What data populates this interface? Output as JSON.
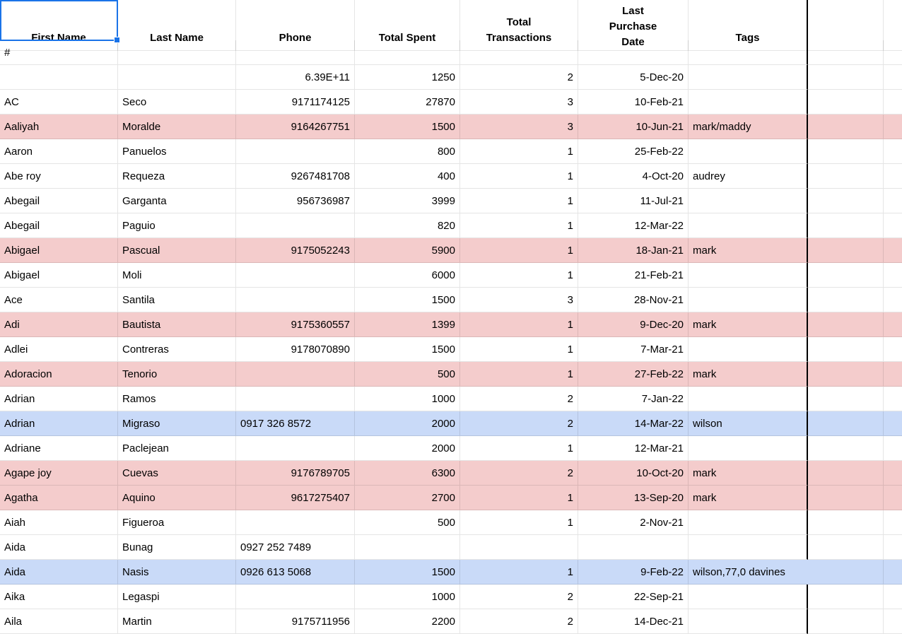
{
  "app": "spreadsheet-grid",
  "colors": {
    "highlight_pink": "#f4cccc",
    "highlight_blue": "#c9daf8",
    "selection_blue": "#1a73e8",
    "custom_border_black": "#000000",
    "gridline": "#e5e5e5",
    "text": "#000000",
    "background": "#ffffff"
  },
  "selection": {
    "selected_cell_label": "First Name"
  },
  "columns": [
    {
      "id": "first",
      "label": "First Name",
      "lines": [
        "First Name"
      ],
      "align": "left"
    },
    {
      "id": "last",
      "label": "Last Name",
      "lines": [
        "Last Name"
      ],
      "align": "left"
    },
    {
      "id": "phone",
      "label": "Phone",
      "lines": [
        "Phone"
      ],
      "align": "right"
    },
    {
      "id": "spent",
      "label": "Total Spent",
      "lines": [
        "Total Spent"
      ],
      "align": "right"
    },
    {
      "id": "tx",
      "label": "Total Transactions",
      "lines": [
        "Total",
        "Transactions"
      ],
      "align": "right"
    },
    {
      "id": "date",
      "label": "Last Purchase Date",
      "lines": [
        "Last",
        "Purchase",
        "Date"
      ],
      "align": "right",
      "clip_from_top": true
    },
    {
      "id": "tags",
      "label": "Tags",
      "lines": [
        "Tags"
      ],
      "align": "left",
      "black_right_border": true
    },
    {
      "id": "extra1",
      "label": "",
      "lines": [],
      "align": "left"
    },
    {
      "id": "extra2",
      "label": "",
      "lines": [],
      "align": "left"
    }
  ],
  "rows": [
    {
      "first": "#",
      "last": "",
      "phone": "",
      "spent": "",
      "tx": "",
      "date": "",
      "tags": "",
      "hl": ""
    },
    {
      "first": "",
      "last": "",
      "phone": "6.39E+11",
      "spent": "1250",
      "tx": "2",
      "date": "5-Dec-20",
      "tags": "",
      "hl": ""
    },
    {
      "first": "AC",
      "last": "Seco",
      "phone": "9171174125",
      "spent": "27870",
      "tx": "3",
      "date": "10-Feb-21",
      "tags": "",
      "hl": ""
    },
    {
      "first": "Aaliyah",
      "last": "Moralde",
      "phone": "9164267751",
      "spent": "1500",
      "tx": "3",
      "date": "10-Jun-21",
      "tags": "mark/maddy",
      "hl": "pink"
    },
    {
      "first": "Aaron",
      "last": "Panuelos",
      "phone": "",
      "spent": "800",
      "tx": "1",
      "date": "25-Feb-22",
      "tags": "",
      "hl": ""
    },
    {
      "first": "Abe roy",
      "last": "Requeza",
      "phone": "9267481708",
      "spent": "400",
      "tx": "1",
      "date": "4-Oct-20",
      "tags": "audrey",
      "hl": ""
    },
    {
      "first": "Abegail",
      "last": "Garganta",
      "phone": "956736987",
      "spent": "3999",
      "tx": "1",
      "date": "11-Jul-21",
      "tags": "",
      "hl": ""
    },
    {
      "first": "Abegail",
      "last": "Paguio",
      "phone": "",
      "spent": "820",
      "tx": "1",
      "date": "12-Mar-22",
      "tags": "",
      "hl": ""
    },
    {
      "first": "Abigael",
      "last": "Pascual",
      "phone": "9175052243",
      "spent": "5900",
      "tx": "1",
      "date": "18-Jan-21",
      "tags": "mark",
      "hl": "pink"
    },
    {
      "first": "Abigael",
      "last": "Moli",
      "phone": "",
      "spent": "6000",
      "tx": "1",
      "date": "21-Feb-21",
      "tags": "",
      "hl": ""
    },
    {
      "first": "Ace",
      "last": "Santila",
      "phone": "",
      "spent": "1500",
      "tx": "3",
      "date": "28-Nov-21",
      "tags": "",
      "hl": ""
    },
    {
      "first": "Adi",
      "last": "Bautista",
      "phone": "9175360557",
      "spent": "1399",
      "tx": "1",
      "date": "9-Dec-20",
      "tags": "mark",
      "hl": "pink"
    },
    {
      "first": "Adlei",
      "last": "Contreras",
      "phone": "9178070890",
      "spent": "1500",
      "tx": "1",
      "date": "7-Mar-21",
      "tags": "",
      "hl": ""
    },
    {
      "first": "Adoracion",
      "last": "Tenorio",
      "phone": "",
      "spent": "500",
      "tx": "1",
      "date": "27-Feb-22",
      "tags": "mark",
      "hl": "pink"
    },
    {
      "first": "Adrian",
      "last": "Ramos",
      "phone": "",
      "spent": "1000",
      "tx": "2",
      "date": "7-Jan-22",
      "tags": "",
      "hl": ""
    },
    {
      "first": "Adrian",
      "last": "Migraso",
      "phone": "0917 326 8572",
      "spent": "2000",
      "tx": "2",
      "date": "14-Mar-22",
      "tags": "wilson",
      "hl": "blue"
    },
    {
      "first": "Adriane",
      "last": "Paclejean",
      "phone": "",
      "spent": "2000",
      "tx": "1",
      "date": "12-Mar-21",
      "tags": "",
      "hl": ""
    },
    {
      "first": "Agape joy",
      "last": "Cuevas",
      "phone": "9176789705",
      "spent": "6300",
      "tx": "2",
      "date": "10-Oct-20",
      "tags": "mark",
      "hl": "pink"
    },
    {
      "first": "Agatha",
      "last": "Aquino",
      "phone": "9617275407",
      "spent": "2700",
      "tx": "1",
      "date": "13-Sep-20",
      "tags": "mark",
      "hl": "pink"
    },
    {
      "first": "Aiah",
      "last": "Figueroa",
      "phone": "",
      "spent": "500",
      "tx": "1",
      "date": "2-Nov-21",
      "tags": "",
      "hl": ""
    },
    {
      "first": "Aida",
      "last": "Bunag",
      "phone": "0927 252 7489",
      "spent": "",
      "tx": "",
      "date": "",
      "tags": "",
      "hl": ""
    },
    {
      "first": "Aida",
      "last": "Nasis",
      "phone": "0926 613 5068",
      "spent": "1500",
      "tx": "1",
      "date": "9-Feb-22",
      "tags": "wilson,77,0 davines",
      "hl": "blue",
      "tags_overflow": true
    },
    {
      "first": "Aika",
      "last": "Legaspi",
      "phone": "",
      "spent": "1000",
      "tx": "2",
      "date": "22-Sep-21",
      "tags": "",
      "hl": ""
    },
    {
      "first": "Aila",
      "last": "Martin",
      "phone": "9175711956",
      "spent": "2200",
      "tx": "2",
      "date": "14-Dec-21",
      "tags": "",
      "hl": "",
      "clipped": true
    }
  ]
}
